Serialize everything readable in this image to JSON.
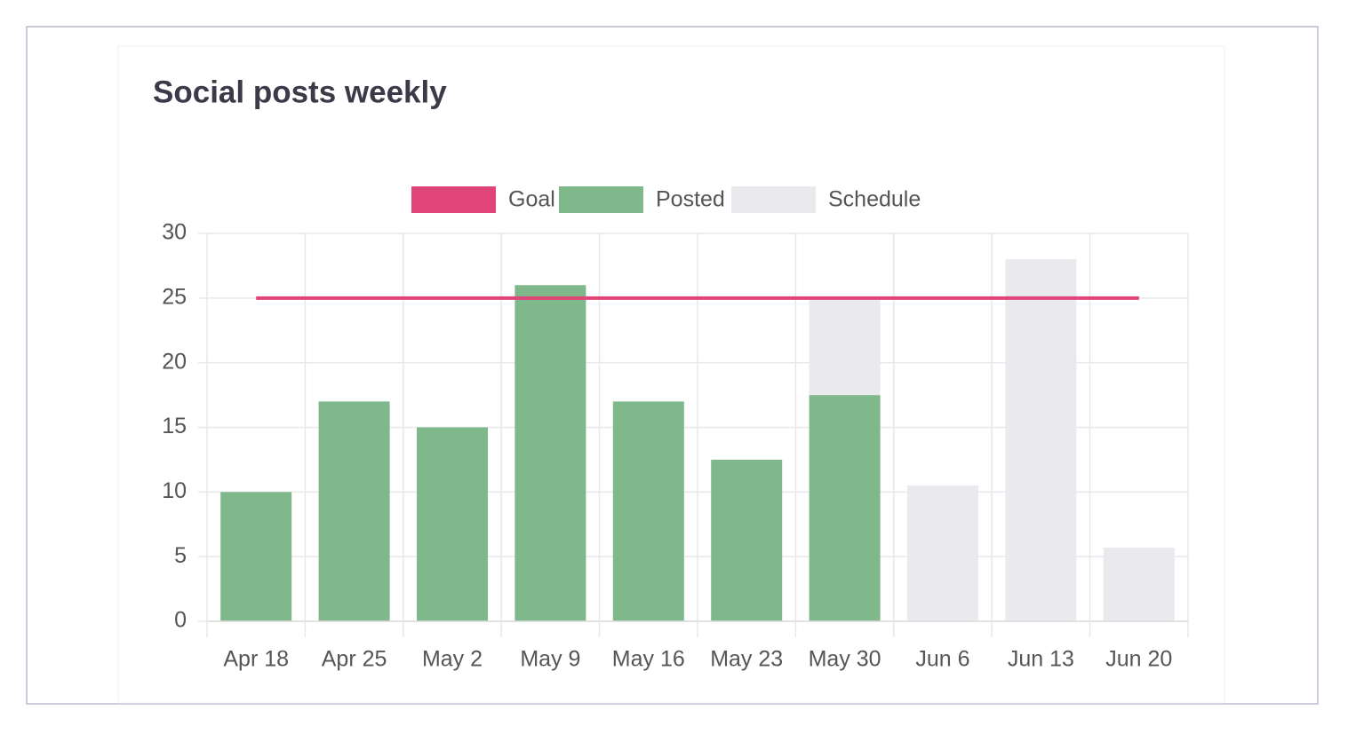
{
  "chart_data": {
    "type": "bar",
    "title": "Social posts weekly",
    "categories": [
      "Apr 18",
      "Apr 25",
      "May 2",
      "May 9",
      "May 16",
      "May 23",
      "May 30",
      "Jun 6",
      "Jun 13",
      "Jun 20"
    ],
    "series": [
      {
        "name": "Goal",
        "type": "line",
        "color": "#e0457a",
        "values": [
          25,
          25,
          25,
          25,
          25,
          25,
          25,
          25,
          25,
          25
        ]
      },
      {
        "name": "Posted",
        "color": "#7fb88a",
        "values": [
          10,
          17,
          15,
          26,
          17,
          12.5,
          17.5,
          0,
          0,
          0
        ]
      },
      {
        "name": "Schedule",
        "color": "#e9e9ee",
        "values": [
          0,
          0,
          0,
          0,
          0,
          0,
          7.5,
          10.5,
          28,
          5.7
        ]
      }
    ],
    "stacked": true,
    "ylim": [
      0,
      30
    ],
    "yticks": [
      0,
      5,
      10,
      15,
      20,
      25,
      30
    ],
    "grid": true,
    "legend": "top"
  }
}
